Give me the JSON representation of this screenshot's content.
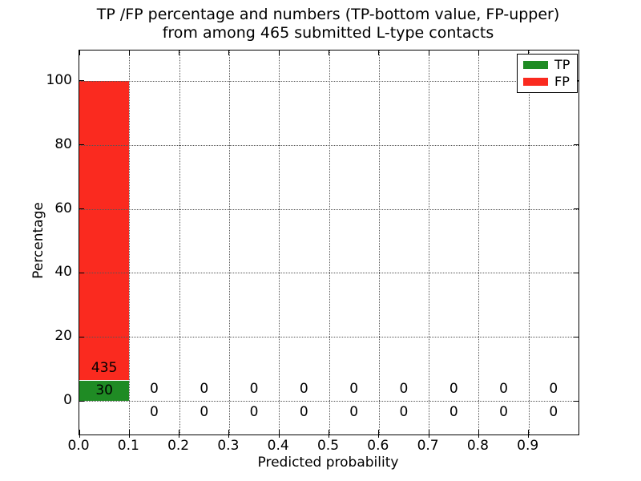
{
  "figure": {
    "title_line1": "TP /FP percentage and numbers (TP-bottom value, FP-upper)",
    "title_line2": "from among 465 submitted L-type contacts"
  },
  "chart_data": {
    "type": "bar",
    "stacked": true,
    "title": "TP /FP percentage and numbers (TP-bottom value, FP-upper) from among 465 submitted L-type contacts",
    "xlabel": "Predicted probability",
    "ylabel": "Percentage",
    "total_contacts": 465,
    "xlim": [
      0.0,
      1.0
    ],
    "ylim": [
      -10.5,
      109.5
    ],
    "bin_edges": [
      0.0,
      0.1,
      0.2,
      0.3,
      0.4,
      0.5,
      0.6,
      0.7,
      0.8,
      0.9,
      1.0
    ],
    "x_ticks": [
      0.0,
      0.1,
      0.2,
      0.3,
      0.4,
      0.5,
      0.6,
      0.7,
      0.8,
      0.9
    ],
    "x_tick_labels": [
      "0.0",
      "0.1",
      "0.2",
      "0.3",
      "0.4",
      "0.5",
      "0.6",
      "0.7",
      "0.8",
      "0.9"
    ],
    "y_ticks": [
      0,
      20,
      40,
      60,
      80,
      100
    ],
    "y_tick_labels": [
      "0",
      "20",
      "40",
      "60",
      "80",
      "100"
    ],
    "grid": "dotted",
    "grid_color": "#555555",
    "series": [
      {
        "name": "TP",
        "color": "#1f8b24",
        "counts": [
          30,
          0,
          0,
          0,
          0,
          0,
          0,
          0,
          0,
          0
        ],
        "percentages": [
          6.45,
          0,
          0,
          0,
          0,
          0,
          0,
          0,
          0,
          0
        ]
      },
      {
        "name": "FP",
        "color": "#fa2a1f",
        "counts": [
          435,
          0,
          0,
          0,
          0,
          0,
          0,
          0,
          0,
          0
        ],
        "percentages": [
          93.55,
          0,
          0,
          0,
          0,
          0,
          0,
          0,
          0,
          0
        ]
      }
    ],
    "legend": {
      "position": "upper right",
      "items": [
        {
          "label": "TP",
          "color": "#1f8b24"
        },
        {
          "label": "FP",
          "color": "#fa2a1f"
        }
      ]
    }
  }
}
